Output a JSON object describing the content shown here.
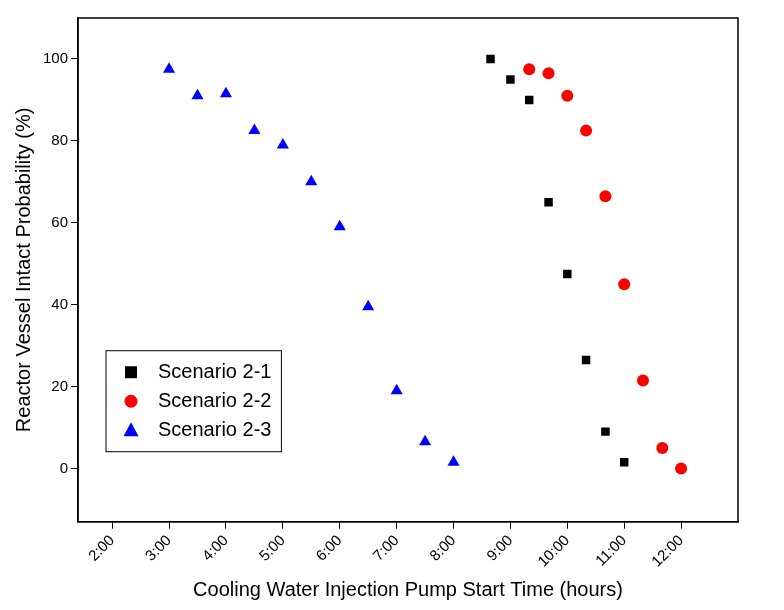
{
  "chart_data": {
    "type": "scatter",
    "x_label": "Cooling Water Injection Pump Start Time (hours)",
    "y_label": "Reactor Vessel Intact Probability (%)",
    "xlim": [
      1.4,
      13.0
    ],
    "xticks": [
      {
        "value": 2,
        "label": "2:00"
      },
      {
        "value": 3,
        "label": "3:00"
      },
      {
        "value": 4,
        "label": "4:00"
      },
      {
        "value": 5,
        "label": "5:00"
      },
      {
        "value": 6,
        "label": "6:00"
      },
      {
        "value": 7,
        "label": "7:00"
      },
      {
        "value": 8,
        "label": "8:00"
      },
      {
        "value": 9,
        "label": "9:00"
      },
      {
        "value": 10,
        "label": "10:00"
      },
      {
        "value": 11,
        "label": "11:00"
      },
      {
        "value": 12,
        "label": "12:00"
      }
    ],
    "ylim": [
      -13,
      110
    ],
    "yticks": [
      0,
      20,
      40,
      60,
      80,
      100
    ],
    "grid": false,
    "legend": "lower left",
    "series": [
      {
        "name": "Scenario 2-1",
        "color": "#000000",
        "marker": "square",
        "x": [
          8.65,
          9.0,
          9.33,
          9.67,
          10.0,
          10.33,
          10.67,
          11.0
        ],
        "values": [
          100,
          95,
          90,
          65,
          47.5,
          26.5,
          9,
          1.5
        ]
      },
      {
        "name": "Scenario 2-2",
        "color": "#ff0000",
        "marker": "circle",
        "x": [
          9.33,
          9.67,
          10.0,
          10.33,
          10.67,
          11.0,
          11.33,
          11.67,
          12.0
        ],
        "values": [
          97.5,
          96.5,
          91,
          82.5,
          66.5,
          45,
          21.5,
          5,
          0
        ]
      },
      {
        "name": "Scenario 2-3",
        "color": "#0000ff",
        "marker": "triangle",
        "x": [
          3.0,
          3.5,
          4.0,
          4.5,
          5.0,
          5.5,
          6.0,
          6.5,
          7.0,
          7.5,
          8.0
        ],
        "values": [
          97.5,
          91,
          91.5,
          82.5,
          79,
          70,
          59,
          39.5,
          19,
          6.5,
          1.5
        ]
      }
    ]
  }
}
